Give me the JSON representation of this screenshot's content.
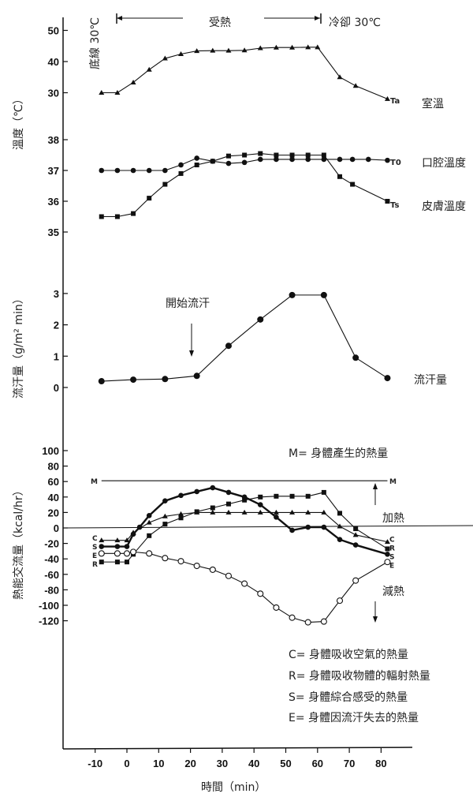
{
  "chart_data": [
    {
      "type": "line",
      "panel": "temperature",
      "ylabel": "溫度（℃）",
      "header": {
        "heat_label": "受熱",
        "cool_label": "冷卻 30℃",
        "baseline_label": "底線 30℃"
      },
      "yticks_ambient": [
        50,
        40,
        30
      ],
      "yticks_body": [
        38,
        37,
        36,
        35
      ],
      "series": [
        {
          "name": "室溫",
          "symbol": "Ta",
          "marker": "triangle",
          "x": [
            -8,
            -3,
            2,
            7,
            12,
            17,
            22,
            27,
            32,
            37,
            42,
            47,
            52,
            57,
            60,
            67,
            72,
            82
          ],
          "y": [
            30,
            30,
            33.3,
            37.4,
            41,
            42.4,
            43.4,
            43.5,
            43.5,
            43.6,
            44.3,
            44.5,
            44.5,
            44.6,
            44.6,
            35,
            32.2,
            28
          ]
        },
        {
          "name": "口腔溫度",
          "symbol": "T0",
          "marker": "circle",
          "x": [
            -8,
            -3,
            2,
            7,
            12,
            17,
            22,
            27,
            32,
            37,
            42,
            47,
            52,
            57,
            62,
            67,
            71,
            76,
            82
          ],
          "y": [
            37,
            37,
            37,
            37,
            37,
            37.18,
            37.4,
            37.3,
            37.23,
            37.26,
            37.36,
            37.36,
            37.36,
            37.36,
            37.36,
            37.36,
            37.36,
            37.36,
            37.33
          ]
        },
        {
          "name": "皮膚溫度",
          "symbol": "Ts",
          "marker": "square",
          "x": [
            -8,
            -3,
            2,
            7,
            12,
            17,
            22,
            27,
            32,
            37,
            42,
            47,
            52,
            57,
            62,
            67,
            71,
            82
          ],
          "y": [
            35.5,
            35.5,
            35.6,
            36.1,
            36.55,
            36.9,
            37.18,
            37.3,
            37.47,
            37.5,
            37.55,
            37.5,
            37.5,
            37.5,
            37.5,
            36.8,
            36.55,
            36.0
          ]
        }
      ]
    },
    {
      "type": "line",
      "panel": "sweat",
      "ylabel": "流汗量（g/m² min）",
      "yticks": [
        3,
        2,
        1,
        0
      ],
      "annotation": "開始流汗",
      "series": [
        {
          "name": "流汗量",
          "marker": "circle",
          "x": [
            -8,
            2,
            12,
            22,
            32,
            42,
            52,
            62,
            72,
            82
          ],
          "y": [
            0.2,
            0.25,
            0.27,
            0.37,
            1.33,
            2.17,
            2.95,
            2.95,
            0.95,
            0.3
          ]
        }
      ]
    },
    {
      "type": "line",
      "panel": "heat",
      "ylabel": "熱能交流量（kcal/hr）",
      "yticks": [
        100,
        80,
        60,
        40,
        20,
        0,
        -20,
        -40,
        -60,
        -80,
        -100,
        -120
      ],
      "xlabel": "時間（min）",
      "xticks": [
        -10,
        0,
        10,
        20,
        30,
        40,
        50,
        60,
        70,
        80
      ],
      "annotations": {
        "gain": "加熱",
        "loss": "減熱"
      },
      "legend": [
        "M= 身體產生的熱量",
        "C= 身體吸收空氣的熱量",
        "R= 身體吸收物體的輻射熱量",
        "S= 身體綜合感受的熱量",
        "E= 身體因流汗失去的熱量"
      ],
      "series": [
        {
          "name": "M",
          "marker": "none",
          "x": [
            -8,
            82
          ],
          "y": [
            61,
            61
          ]
        },
        {
          "name": "C",
          "marker": "triangle",
          "x": [
            -8,
            -3,
            0,
            2,
            7,
            12,
            17,
            22,
            27,
            32,
            37,
            42,
            47,
            52,
            57,
            62,
            67,
            72,
            82
          ],
          "y": [
            -16,
            -16,
            -16,
            -6,
            7,
            15,
            18,
            20,
            20,
            20,
            20,
            20,
            20,
            20,
            20,
            20,
            2,
            -9,
            -18
          ]
        },
        {
          "name": "S",
          "marker": "circle",
          "x": [
            -8,
            -3,
            0,
            2,
            4,
            7,
            12,
            17,
            22,
            27,
            32,
            37,
            42,
            47,
            52,
            57,
            62,
            67,
            72,
            82
          ],
          "y": [
            -24,
            -24,
            -24,
            -8,
            1,
            16,
            35,
            42,
            47,
            52,
            46,
            40,
            30,
            14,
            -3,
            1,
            1,
            -15,
            -22,
            -34
          ]
        },
        {
          "name": "R",
          "marker": "square",
          "x": [
            -8,
            -3,
            0,
            2,
            7,
            12,
            17,
            22,
            27,
            32,
            37,
            42,
            47,
            52,
            57,
            62,
            67,
            72,
            82
          ],
          "y": [
            -44,
            -44,
            -44,
            -34,
            -10,
            5,
            13,
            21,
            26,
            31,
            36,
            40,
            41,
            41,
            41,
            46,
            19,
            -1,
            -27
          ]
        },
        {
          "name": "E",
          "marker": "open-circle",
          "x": [
            -8,
            -3,
            0,
            2,
            7,
            12,
            17,
            22,
            27,
            32,
            37,
            42,
            47,
            52,
            57,
            62,
            67,
            72,
            82
          ],
          "y": [
            -33,
            -33,
            -33,
            -31,
            -33,
            -39,
            -43,
            -49,
            -54,
            -62,
            -72,
            -85,
            -103,
            -116,
            -122,
            -121,
            -94,
            -68,
            -44
          ]
        }
      ]
    }
  ]
}
